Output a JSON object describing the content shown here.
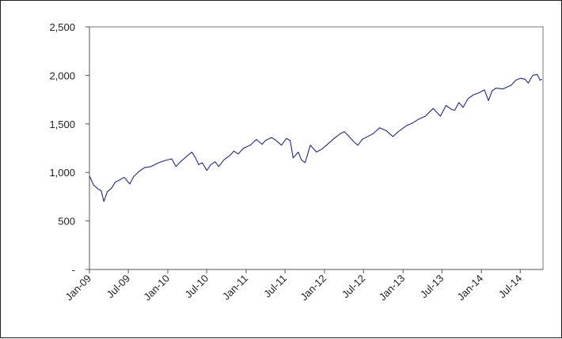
{
  "chart_data": {
    "type": "line",
    "title": "",
    "xlabel": "",
    "ylabel": "",
    "ylim": [
      0,
      2500
    ],
    "xlim": [
      "2009-01-01",
      "2014-10-15"
    ],
    "grid": false,
    "legend": "none",
    "y_ticks": [
      0,
      500,
      1000,
      1500,
      2000,
      2500
    ],
    "y_tick_labels": [
      "-",
      "500",
      "1,000",
      "1,500",
      "2,000",
      "2,500"
    ],
    "x_ticks": [
      "2009-01-01",
      "2009-07-01",
      "2010-01-01",
      "2010-07-01",
      "2011-01-01",
      "2011-07-01",
      "2012-01-01",
      "2012-07-01",
      "2013-01-01",
      "2013-07-01",
      "2014-01-01",
      "2014-07-01"
    ],
    "x_tick_labels": [
      "Jan-09",
      "Jul-09",
      "Jan-10",
      "Jul-10",
      "Jan-11",
      "Jul-11",
      "Jan-12",
      "Jul-12",
      "Jan-13",
      "Jul-13",
      "Jan-14",
      "Jul-14"
    ],
    "series": [
      {
        "color": "#1f2a7a",
        "x": [
          "2009-01-02",
          "2009-01-20",
          "2009-02-10",
          "2009-02-25",
          "2009-03-09",
          "2009-03-25",
          "2009-04-15",
          "2009-05-01",
          "2009-05-20",
          "2009-06-12",
          "2009-07-08",
          "2009-07-27",
          "2009-08-20",
          "2009-09-15",
          "2009-10-15",
          "2009-11-01",
          "2009-11-20",
          "2009-12-15",
          "2010-01-19",
          "2010-02-08",
          "2010-03-01",
          "2010-04-01",
          "2010-04-23",
          "2010-05-10",
          "2010-05-25",
          "2010-06-10",
          "2010-07-02",
          "2010-07-20",
          "2010-08-10",
          "2010-08-26",
          "2010-09-20",
          "2010-10-15",
          "2010-11-05",
          "2010-11-25",
          "2010-12-20",
          "2011-01-20",
          "2011-02-18",
          "2011-03-16",
          "2011-04-01",
          "2011-04-29",
          "2011-05-20",
          "2011-06-15",
          "2011-07-07",
          "2011-07-25",
          "2011-08-08",
          "2011-08-20",
          "2011-09-01",
          "2011-09-15",
          "2011-10-03",
          "2011-10-27",
          "2011-11-25",
          "2011-12-20",
          "2012-01-20",
          "2012-02-15",
          "2012-03-15",
          "2012-04-02",
          "2012-04-20",
          "2012-05-15",
          "2012-06-04",
          "2012-06-25",
          "2012-07-20",
          "2012-08-15",
          "2012-09-14",
          "2012-10-15",
          "2012-11-15",
          "2012-12-10",
          "2013-01-15",
          "2013-02-15",
          "2013-03-15",
          "2013-04-15",
          "2013-05-21",
          "2013-06-24",
          "2013-07-20",
          "2013-08-15",
          "2013-08-30",
          "2013-09-18",
          "2013-10-08",
          "2013-10-30",
          "2013-11-25",
          "2013-12-20",
          "2014-01-15",
          "2014-02-03",
          "2014-02-20",
          "2014-03-10",
          "2014-04-10",
          "2014-05-01",
          "2014-05-20",
          "2014-06-10",
          "2014-07-01",
          "2014-07-24",
          "2014-08-07",
          "2014-08-28",
          "2014-09-18",
          "2014-10-01",
          "2014-10-10"
        ],
        "values": [
          960,
          870,
          830,
          810,
          700,
          800,
          840,
          900,
          920,
          950,
          880,
          960,
          1010,
          1050,
          1060,
          1080,
          1100,
          1120,
          1140,
          1060,
          1110,
          1170,
          1210,
          1150,
          1080,
          1100,
          1020,
          1080,
          1110,
          1060,
          1130,
          1170,
          1220,
          1190,
          1250,
          1280,
          1340,
          1290,
          1330,
          1360,
          1330,
          1280,
          1350,
          1330,
          1150,
          1180,
          1210,
          1130,
          1100,
          1280,
          1210,
          1240,
          1300,
          1350,
          1400,
          1420,
          1380,
          1320,
          1280,
          1340,
          1370,
          1400,
          1460,
          1430,
          1370,
          1420,
          1480,
          1510,
          1550,
          1580,
          1660,
          1580,
          1690,
          1650,
          1640,
          1720,
          1670,
          1760,
          1800,
          1820,
          1850,
          1740,
          1840,
          1870,
          1860,
          1880,
          1900,
          1950,
          1970,
          1960,
          1920,
          2000,
          2010,
          1950,
          1960
        ]
      }
    ]
  }
}
